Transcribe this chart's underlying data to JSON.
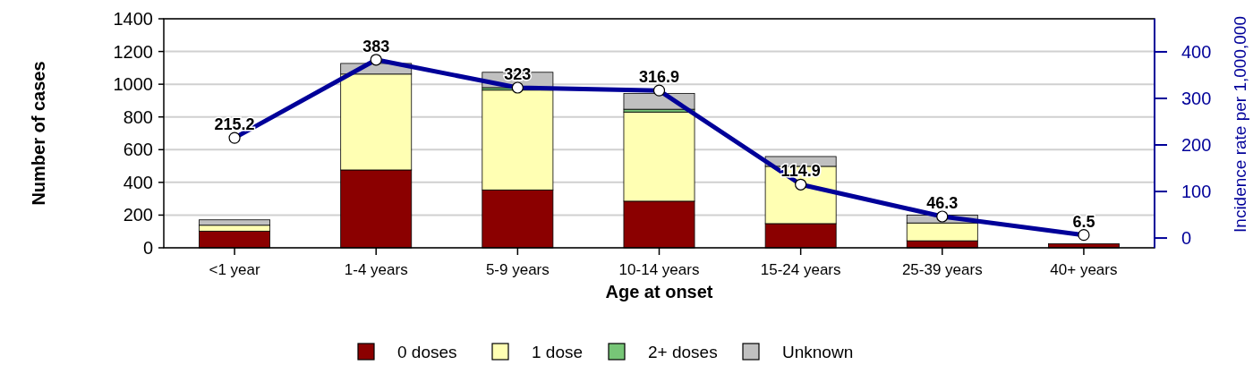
{
  "chart_data": {
    "type": "bar",
    "stacked": true,
    "xlabel": "Age at onset",
    "ylabel": "Number of cases",
    "y2label": "Incidence rate per 1,000,000",
    "categories": [
      "<1 year",
      "1-4 years",
      "5-9 years",
      "10-14 years",
      "15-24 years",
      "25-39 years",
      "40+ years"
    ],
    "series": [
      {
        "name": "0 doses",
        "color": "#8b0000",
        "values": [
          102,
          476,
          354,
          285,
          148,
          43,
          25
        ]
      },
      {
        "name": "1 dose",
        "color": "#ffffb3",
        "values": [
          36,
          586,
          610,
          545,
          350,
          109,
          null
        ]
      },
      {
        "name": "2+ doses",
        "color": "#77c677",
        "values": [
          null,
          null,
          15,
          17,
          null,
          null,
          null
        ]
      },
      {
        "name": "Unknown",
        "color": "#c0c0c0",
        "values": [
          33,
          65,
          94,
          97,
          60,
          48,
          null
        ]
      },
      {
        "type": "line",
        "axis": "y2",
        "color": "#000099",
        "marker": "circle",
        "values": [
          215.2,
          383,
          323,
          316.9,
          114.9,
          46.3,
          6.5
        ],
        "value_labels": [
          "215.2",
          "383",
          "323",
          "316.9",
          "114.9",
          "46.3",
          "6.5"
        ]
      }
    ],
    "ylim": [
      0,
      1400
    ],
    "yticks": [
      0,
      200,
      400,
      600,
      800,
      1000,
      1200,
      1400
    ],
    "y2lim": [
      -21,
      471
    ],
    "y2ticks": [
      0,
      100,
      200,
      300,
      400
    ],
    "grid": "y",
    "legend": "bottom"
  }
}
